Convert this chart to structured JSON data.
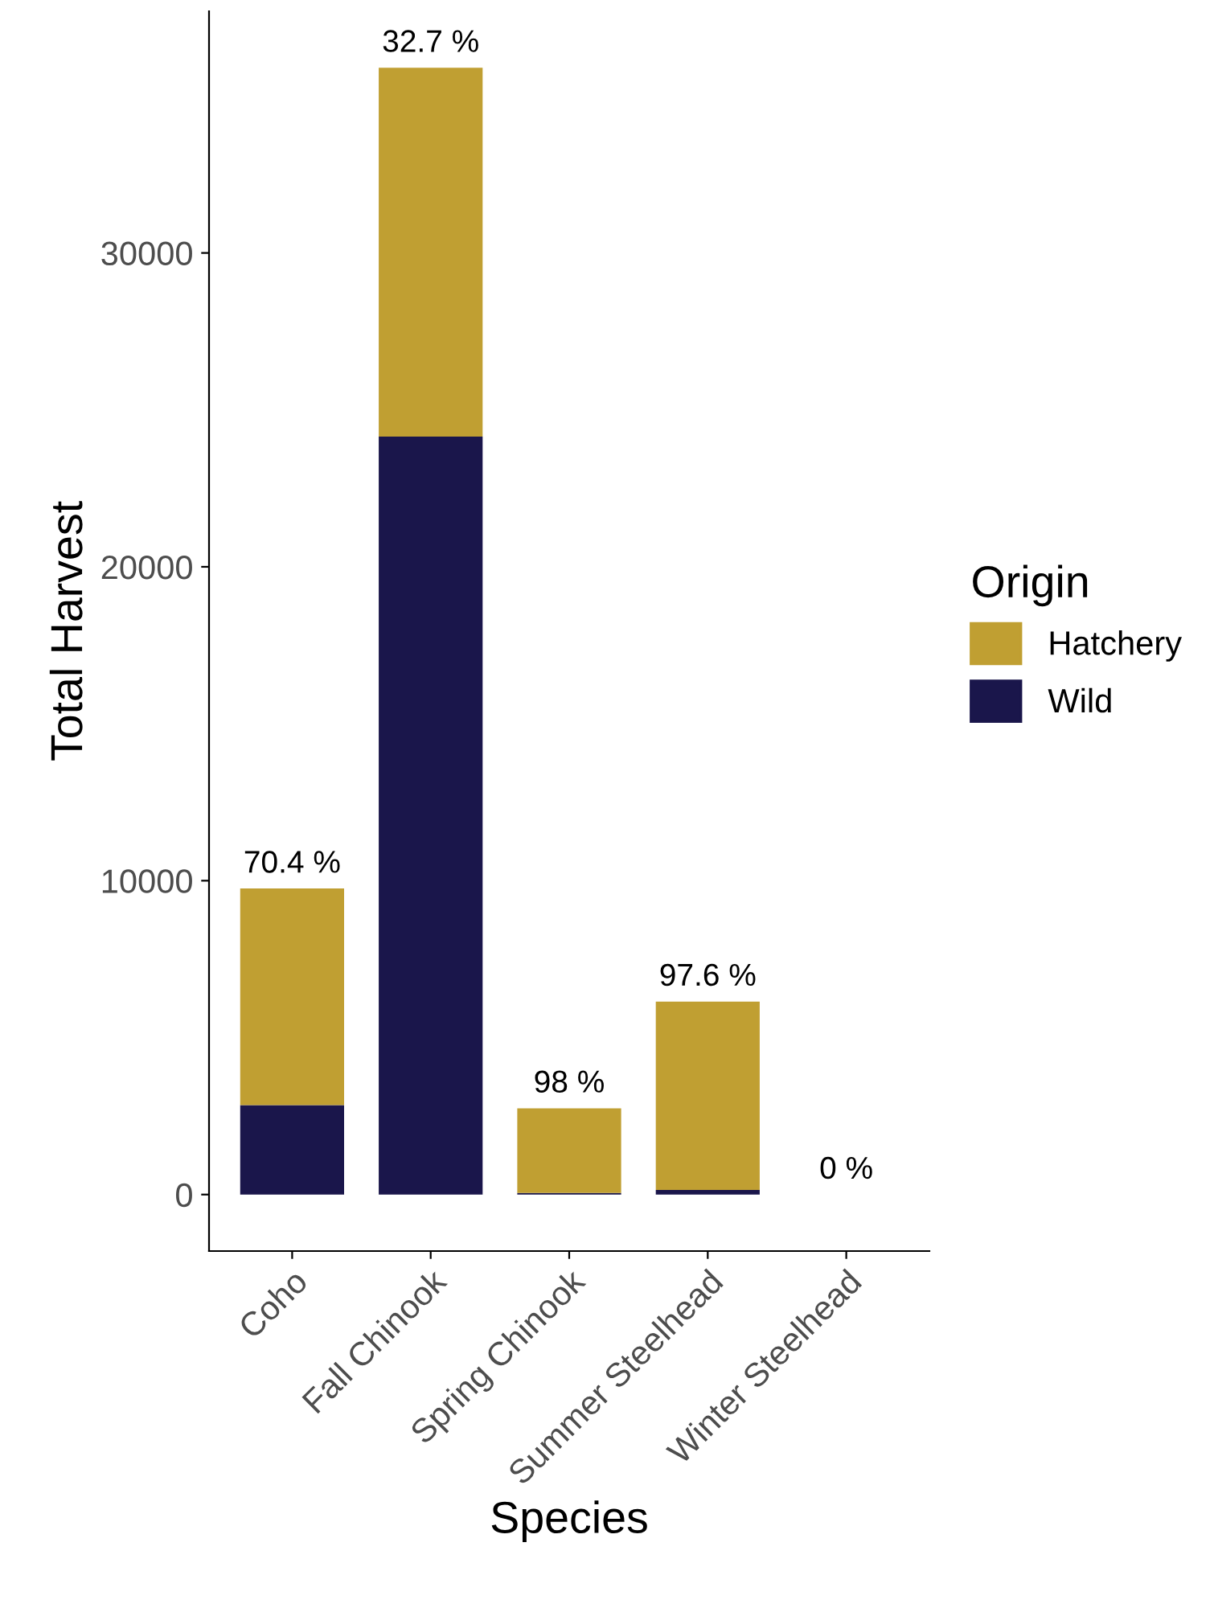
{
  "chart_data": {
    "type": "bar",
    "stacked": true,
    "xlabel": "Species",
    "ylabel": "Total Harvest",
    "legend_title": "Origin",
    "legend": "right",
    "categories": [
      "Coho",
      "Fall Chinook",
      "Spring Chinook",
      "Summer Steelhead",
      "Winter Steelhead"
    ],
    "series": [
      {
        "name": "Wild",
        "color": "#1a164b",
        "values": [
          2850,
          24150,
          50,
          150,
          0
        ]
      },
      {
        "name": "Hatchery",
        "color": "#c09f32",
        "values": [
          6900,
          11750,
          2700,
          6000,
          0
        ]
      }
    ],
    "annotations": [
      {
        "text": "70.4 %",
        "x": "Coho",
        "y": 9750
      },
      {
        "text": "32.7 %",
        "x": "Fall Chinook",
        "y": 35900
      },
      {
        "text": "98 %",
        "x": "Spring Chinook",
        "y": 2750
      },
      {
        "text": "97.6 %",
        "x": "Summer Steelhead",
        "y": 6150
      },
      {
        "text": "0 %",
        "x": "Winter Steelhead",
        "y": 0
      }
    ],
    "ylim": [
      -1800,
      37700
    ],
    "yticks": [
      0,
      10000,
      20000,
      30000
    ],
    "grid": false
  }
}
